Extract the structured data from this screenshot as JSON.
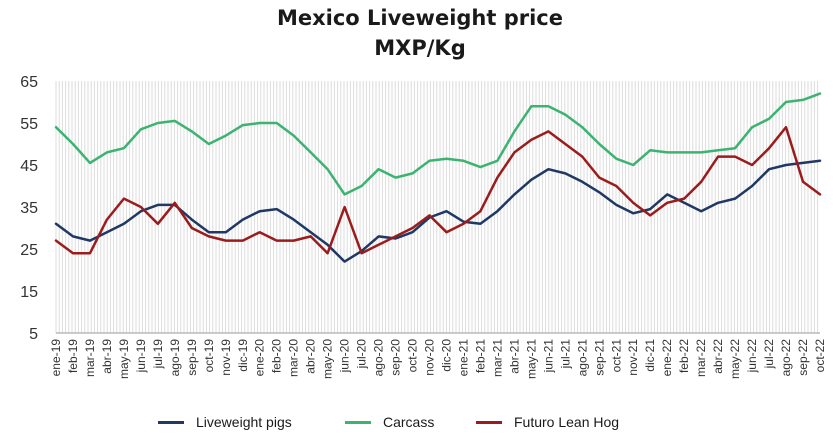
{
  "chart_data": {
    "type": "line",
    "title": "Mexico Liveweight price",
    "subtitle": "MXP/Kg",
    "ylim": [
      5,
      65
    ],
    "yticks": [
      5,
      15,
      25,
      35,
      45,
      55,
      65
    ],
    "grid": "vertical lines",
    "legend_position": "bottom",
    "categories": [
      "ene-19",
      "feb-19",
      "mar-19",
      "abr-19",
      "may-19",
      "jun-19",
      "jul-19",
      "ago-19",
      "sep-19",
      "oct-19",
      "nov-19",
      "dic-19",
      "ene-20",
      "feb-20",
      "mar-20",
      "abr-20",
      "may-20",
      "jun-20",
      "jul-20",
      "ago-20",
      "sep-20",
      "oct-20",
      "nov-20",
      "dic-20",
      "ene-21",
      "feb-21",
      "mar-21",
      "abr-21",
      "may-21",
      "jun-21",
      "jul-21",
      "ago-21",
      "sep-21",
      "oct-21",
      "nov-21",
      "dic-21",
      "ene-22",
      "feb-22",
      "mar-22",
      "abr-22",
      "may-22",
      "jun-22",
      "jul-22",
      "ago-22",
      "sep-22",
      "oct-22"
    ],
    "series": [
      {
        "name": "Liveweight pigs",
        "color": "#1f3864",
        "values": [
          31,
          28,
          27,
          29,
          31,
          34,
          35.5,
          35.5,
          32,
          29,
          29,
          32,
          34,
          34.5,
          32,
          29,
          26,
          22,
          24.5,
          28,
          27.5,
          29,
          32.5,
          34,
          31.5,
          31,
          34,
          38,
          41.5,
          44,
          43,
          41,
          38.5,
          35.5,
          33.5,
          34.5,
          38,
          36,
          34,
          36,
          37,
          40,
          44,
          45,
          45.5,
          46
        ]
      },
      {
        "name": "Carcass",
        "color": "#3cb371",
        "values": [
          54,
          50,
          45.5,
          48,
          49,
          53.5,
          55,
          55.5,
          53,
          50,
          52,
          54.5,
          55,
          55,
          52,
          48,
          44,
          38,
          40,
          44,
          42,
          43,
          46,
          46.5,
          46,
          44.5,
          46,
          53,
          59,
          59,
          57,
          54,
          50,
          46.5,
          45,
          48.5,
          48,
          48,
          48,
          48.5,
          49,
          54,
          56,
          60,
          60.5,
          62
        ]
      },
      {
        "name": "Futuro Lean Hog",
        "color": "#9b1c1c",
        "values": [
          27,
          24,
          24,
          32,
          37,
          35,
          31,
          36,
          30,
          28,
          27,
          27,
          29,
          27,
          27,
          28,
          24,
          35,
          24,
          26,
          28,
          30,
          33,
          29,
          31,
          34,
          42,
          48,
          51,
          53,
          50,
          47,
          42,
          40,
          36,
          33,
          36,
          37,
          41,
          47,
          47,
          45,
          49,
          54,
          41,
          38
        ]
      }
    ]
  }
}
